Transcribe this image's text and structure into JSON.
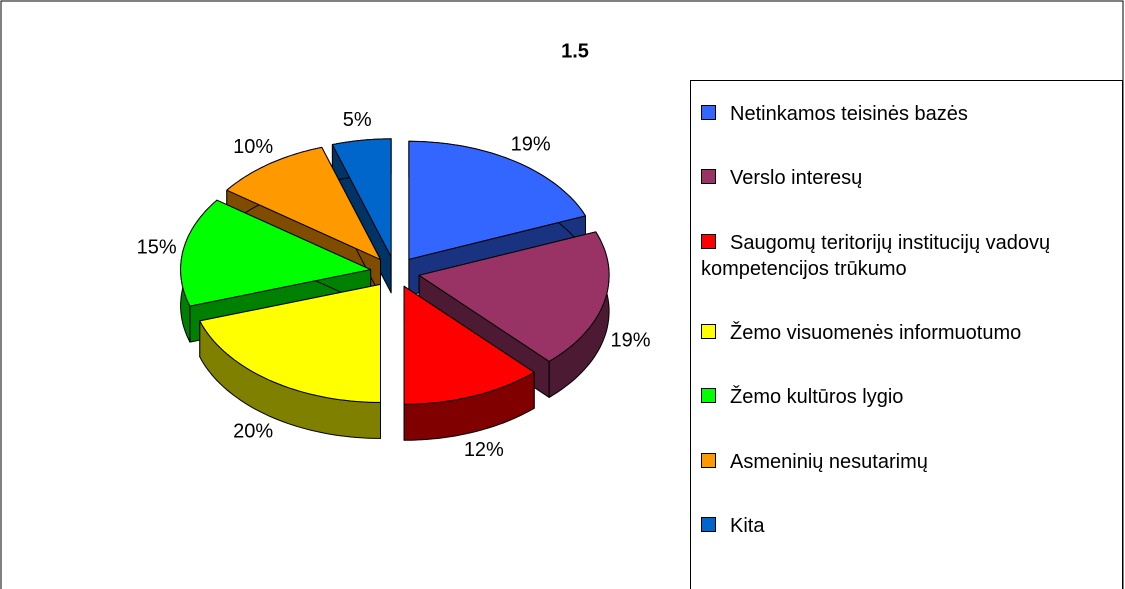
{
  "chart_data": {
    "type": "pie",
    "title": "1.5",
    "categories": [
      "Netinkamos teisinės bazės",
      "Verslo interesų",
      "Saugomų teritorijų institucijų vadovų kompetencijos trūkumo",
      "Žemo visuomenės informuotumo",
      "Žemo kultūros lygio",
      "Asmeninių nesutarimų",
      "Kita"
    ],
    "values": [
      19,
      19,
      12,
      20,
      15,
      10,
      5
    ],
    "value_labels": [
      "19%",
      "19%",
      "12%",
      "20%",
      "15%",
      "10%",
      "5%"
    ],
    "colors": [
      "#3366ff",
      "#993366",
      "#ff0000",
      "#ffff00",
      "#00ff00",
      "#ff9900",
      "#0066cc"
    ],
    "legend": "right"
  }
}
